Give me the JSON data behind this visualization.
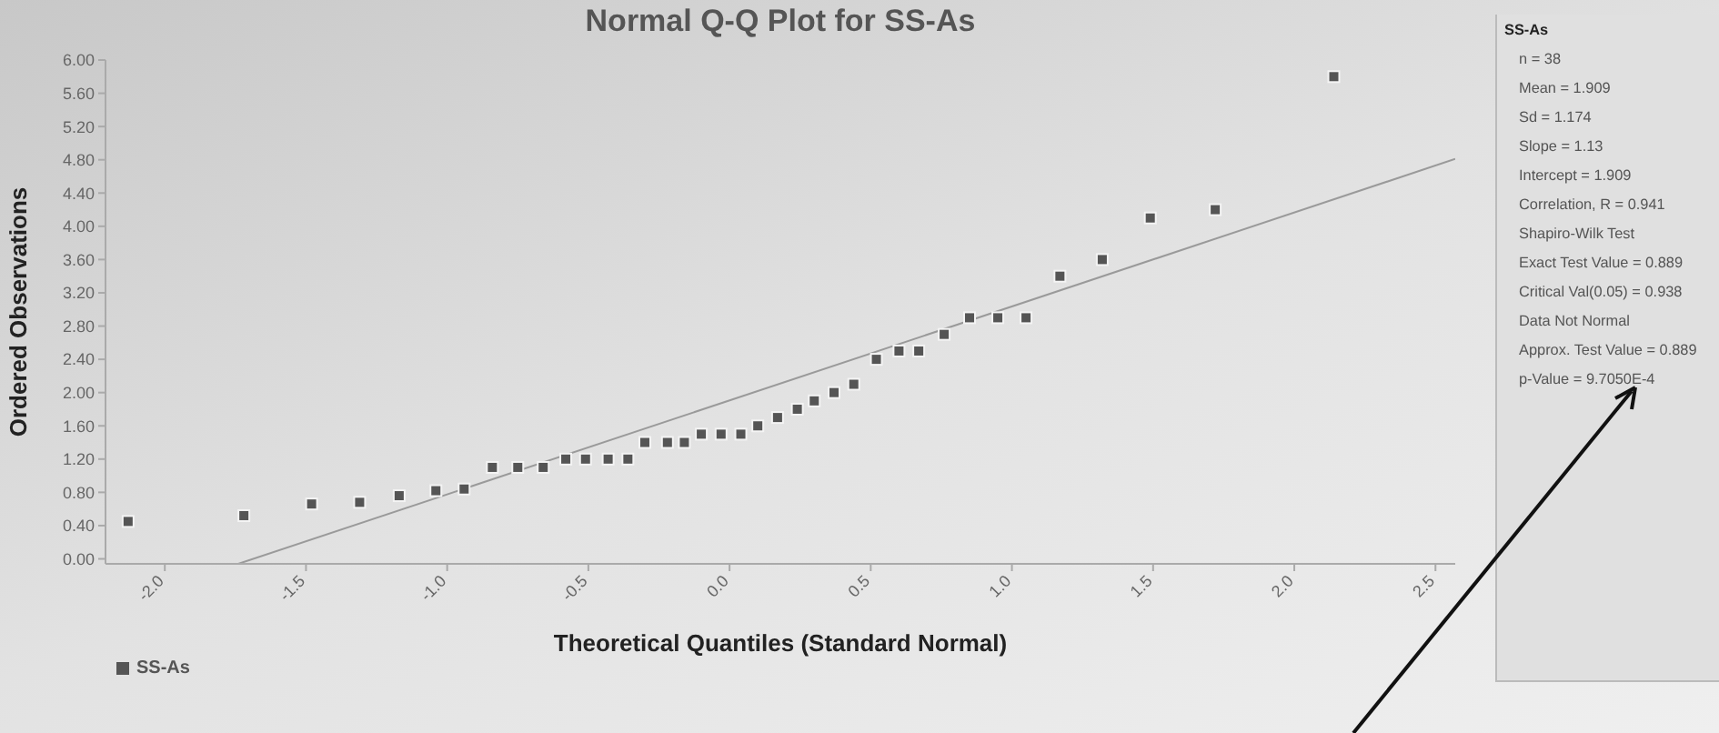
{
  "chart_data": {
    "type": "scatter",
    "title": "Normal Q-Q Plot for SS-As",
    "xlabel": "Theoretical Quantiles (Standard Normal)",
    "ylabel": "Ordered Observations",
    "x": [
      -2.13,
      -1.72,
      -1.48,
      -1.31,
      -1.17,
      -1.04,
      -0.94,
      -0.84,
      -0.75,
      -0.66,
      -0.58,
      -0.51,
      -0.43,
      -0.36,
      -0.3,
      -0.22,
      -0.16,
      -0.1,
      -0.03,
      0.04,
      0.1,
      0.17,
      0.24,
      0.3,
      0.37,
      0.44,
      0.52,
      0.6,
      0.67,
      0.76,
      0.85,
      0.95,
      1.05,
      1.17,
      1.32,
      1.49,
      1.72,
      2.14
    ],
    "series": [
      {
        "name": "SS-As",
        "color": "#555555",
        "values": [
          0.45,
          0.52,
          0.66,
          0.68,
          0.76,
          0.82,
          0.84,
          1.1,
          1.1,
          1.1,
          1.2,
          1.2,
          1.2,
          1.2,
          1.4,
          1.4,
          1.4,
          1.5,
          1.5,
          1.5,
          1.6,
          1.7,
          1.8,
          1.9,
          2.0,
          2.1,
          2.4,
          2.5,
          2.5,
          2.7,
          2.9,
          2.9,
          2.9,
          3.4,
          3.6,
          4.1,
          4.2,
          5.8
        ]
      },
      {
        "type": "line",
        "marker": "none",
        "color": "#9a9a9a",
        "x": [
          -1.74,
          2.57
        ],
        "values": [
          -0.06,
          4.81
        ]
      }
    ],
    "xlim": [
      -2.21,
      2.57
    ],
    "ylim": [
      -0.06,
      6.0
    ],
    "xticks": [
      {
        "value": -2.0,
        "label": "-2.0"
      },
      {
        "value": -1.5,
        "label": "-1.5"
      },
      {
        "value": -1.0,
        "label": "-1.0"
      },
      {
        "value": -0.5,
        "label": "-0.5"
      },
      {
        "value": 0,
        "label": "0.0"
      },
      {
        "value": 0.5,
        "label": "0.5"
      },
      {
        "value": 1.0,
        "label": "1.0"
      },
      {
        "value": 1.5,
        "label": "1.5"
      },
      {
        "value": 2.0,
        "label": "2.0"
      },
      {
        "value": 2.5,
        "label": "2.5"
      }
    ],
    "yticks": [
      {
        "value": 0,
        "label": "0.00"
      },
      {
        "value": 0.4,
        "label": "0.40"
      },
      {
        "value": 0.8,
        "label": "0.80"
      },
      {
        "value": 1.2,
        "label": "1.20"
      },
      {
        "value": 1.6,
        "label": "1.60"
      },
      {
        "value": 2.0,
        "label": "2.00"
      },
      {
        "value": 2.4,
        "label": "2.40"
      },
      {
        "value": 2.8,
        "label": "2.80"
      },
      {
        "value": 3.2,
        "label": "3.20"
      },
      {
        "value": 3.6,
        "label": "3.60"
      },
      {
        "value": 4.0,
        "label": "4.00"
      },
      {
        "value": 4.4,
        "label": "4.40"
      },
      {
        "value": 4.8,
        "label": "4.80"
      },
      {
        "value": 5.2,
        "label": "5.20"
      },
      {
        "value": 5.6,
        "label": "5.60"
      },
      {
        "value": 6.0,
        "label": "6.00"
      }
    ],
    "grid": false,
    "legend": "bottom left",
    "marker": "square",
    "annotations": [
      "SS-As",
      "n = 38",
      "Mean = 1.909",
      "Sd = 1.174",
      "Slope = 1.13",
      "Intercept = 1.909",
      "Correlation, R = 0.941",
      "Shapiro-Wilk Test",
      "Exact Test Value = 0.889",
      "Critical Val(0.05) = 0.938",
      "Data Not Normal",
      "Approx. Test Value = 0.889",
      "p-Value = 9.7050E-4"
    ]
  }
}
